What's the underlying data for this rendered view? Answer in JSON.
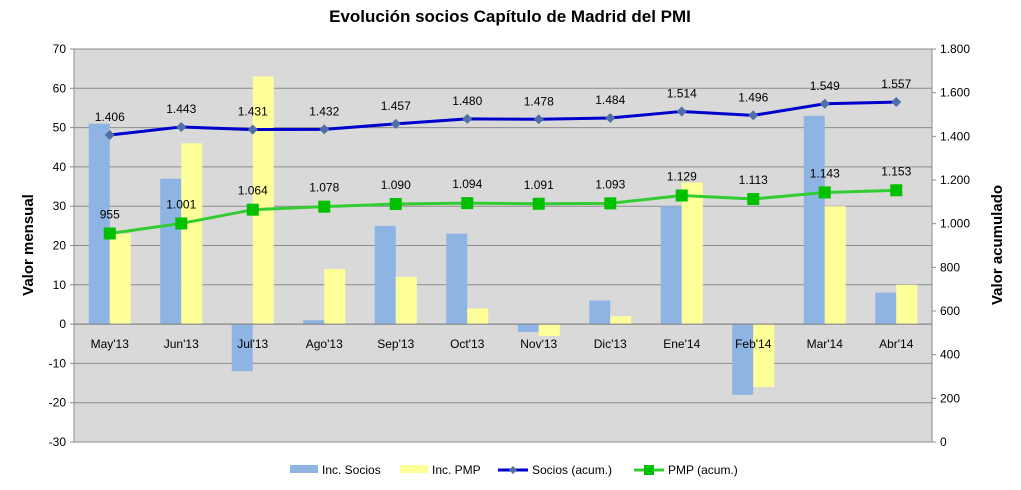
{
  "chart_data": {
    "type": "bar",
    "title": "Evolución socios Capítulo de Madrid del PMI",
    "ylabel": "Valor mensual",
    "y2label": "Valor acumulado",
    "categories": [
      "May'13",
      "Jun'13",
      "Jul'13",
      "Ago'13",
      "Sep'13",
      "Oct'13",
      "Nov'13",
      "Dic'13",
      "Ene'14",
      "Feb'14",
      "Mar'14",
      "Abr'14"
    ],
    "ylim": [
      -30,
      70
    ],
    "yticks": [
      -30,
      -20,
      -10,
      0,
      10,
      20,
      30,
      40,
      50,
      60,
      70
    ],
    "y2lim": [
      0,
      1800
    ],
    "y2ticks": [
      0,
      200,
      400,
      600,
      800,
      1000,
      1200,
      1400,
      1600,
      1800
    ],
    "y2tick_labels": [
      "0",
      "200",
      "400",
      "600",
      "800",
      "1.000",
      "1.200",
      "1.400",
      "1.600",
      "1.800"
    ],
    "grid": true,
    "legend_position": "bottom",
    "bar_series": [
      {
        "name": "Inc. Socios",
        "color": "#8db4e2",
        "values": [
          51,
          37,
          -12,
          1,
          25,
          23,
          -2,
          6,
          30,
          -18,
          53,
          8
        ]
      },
      {
        "name": "Inc. PMP",
        "color": "#ffff99",
        "values": [
          23,
          46,
          63,
          14,
          12,
          4,
          -3,
          2,
          36,
          -16,
          30,
          10
        ]
      }
    ],
    "line_series": [
      {
        "name": "Socios (acum.)",
        "color": "#0000cc",
        "marker_color": "#4f6fa8",
        "marker": "diamond",
        "values": [
          1406,
          1443,
          1431,
          1432,
          1457,
          1480,
          1478,
          1484,
          1514,
          1496,
          1549,
          1557
        ],
        "labels": [
          "1.406",
          "1.443",
          "1.431",
          "1.432",
          "1.457",
          "1.480",
          "1.478",
          "1.484",
          "1.514",
          "1.496",
          "1.549",
          "1.557"
        ]
      },
      {
        "name": "PMP (acum.)",
        "color": "#33cc33",
        "marker_color": "#00c000",
        "marker": "square",
        "values": [
          955,
          1001,
          1064,
          1078,
          1090,
          1094,
          1091,
          1093,
          1129,
          1113,
          1143,
          1153
        ],
        "labels": [
          "955",
          "1.001",
          "1.064",
          "1.078",
          "1.090",
          "1.094",
          "1.091",
          "1.093",
          "1.129",
          "1.113",
          "1.143",
          "1.153"
        ]
      }
    ]
  }
}
